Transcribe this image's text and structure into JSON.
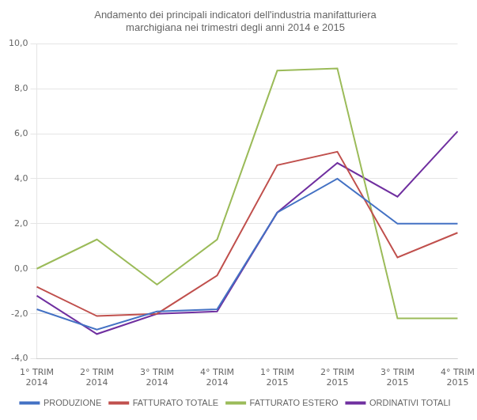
{
  "chart_data": {
    "type": "line",
    "title": "Andamento dei principali indicatori dell'industria manifatturiera\nmarchigiana nei trimestri degli anni 2014 e 2015",
    "categories": [
      "1° TRIM\n2014",
      "2° TRIM\n2014",
      "3° TRIM\n2014",
      "4° TRIM\n2014",
      "1° TRIM\n2015",
      "2° TRIM\n2015",
      "3° TRIM\n2015",
      "4° TRIM\n2015"
    ],
    "series": [
      {
        "name": "PRODUZIONE",
        "color": "#4472C4",
        "values": [
          -1.8,
          -2.7,
          -1.9,
          -1.8,
          2.5,
          4.0,
          2.0,
          2.0
        ]
      },
      {
        "name": "FATTURATO TOTALE",
        "color": "#C0504D",
        "values": [
          -0.8,
          -2.1,
          -2.0,
          -0.3,
          4.6,
          5.2,
          0.5,
          1.6
        ]
      },
      {
        "name": "FATTURATO ESTERO",
        "color": "#9BBB59",
        "values": [
          0.0,
          1.3,
          -0.7,
          1.3,
          8.8,
          8.9,
          -2.2,
          -2.2
        ]
      },
      {
        "name": "ORDINATIVI TOTALI",
        "color": "#7030A0",
        "values": [
          -1.2,
          -2.9,
          -2.0,
          -1.9,
          2.5,
          4.7,
          3.2,
          6.1
        ]
      }
    ],
    "ylim": [
      -4.0,
      10.0
    ],
    "yticks": [
      {
        "value": -4.0,
        "label": "-4,0"
      },
      {
        "value": -2.0,
        "label": "-2,0"
      },
      {
        "value": 0.0,
        "label": "0,0"
      },
      {
        "value": 2.0,
        "label": "2,0"
      },
      {
        "value": 4.0,
        "label": "4,0"
      },
      {
        "value": 6.0,
        "label": "6,0"
      },
      {
        "value": 8.0,
        "label": "8,0"
      },
      {
        "value": 10.0,
        "label": "10,0"
      }
    ],
    "grid": "y",
    "legend": "bottom"
  }
}
